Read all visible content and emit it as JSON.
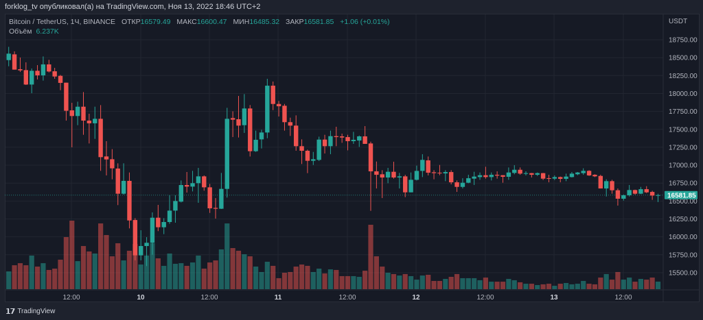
{
  "header": {
    "publisher_line": "forklog_tv опубликовал(а) на TradingView.com, Ноя 13, 2022 18:46 UTC+2"
  },
  "legend": {
    "symbol": "Bitcoin / TetherUS, 1Ч, BINANCE",
    "open_label": "ОТКР",
    "open": "16579.49",
    "high_label": "МАКС",
    "high": "16600.47",
    "low_label": "МИН",
    "low": "16485.32",
    "close_label": "ЗАКР",
    "close": "16581.85",
    "change": "+1.06 (+0.01%)",
    "volume_label": "Объём",
    "volume": "6.237K"
  },
  "price_axis": {
    "currency": "USDT",
    "last_price": "16581.85"
  },
  "footer": {
    "logo_text": "TradingView"
  },
  "colors": {
    "up": "#26a69a",
    "down": "#ef5350",
    "background": "#161a25",
    "grid": "#222631"
  },
  "chart_data": {
    "type": "candlestick",
    "interval": "1h",
    "ylim": [
      15350,
      18850
    ],
    "y_ticks": [
      "18750.00",
      "18500.00",
      "18250.00",
      "18000.00",
      "17750.00",
      "17500.00",
      "17250.00",
      "17000.00",
      "16750.00",
      "16500.00",
      "16250.00",
      "16000.00",
      "15750.00",
      "15500.00"
    ],
    "x_ticks": [
      "12:00",
      "10",
      "12:00",
      "11",
      "12:00",
      "12",
      "12:00",
      "13",
      "12:00"
    ],
    "ohlc": [
      [
        18466,
        18651,
        18380,
        18556
      ],
      [
        18546,
        18588,
        18333,
        18333
      ],
      [
        18339,
        18502,
        18301,
        18323
      ],
      [
        18326,
        18435,
        18119,
        18125
      ],
      [
        18125,
        18349,
        18004,
        18317
      ],
      [
        18317,
        18396,
        18196,
        18253
      ],
      [
        18253,
        18517,
        18180,
        18406
      ],
      [
        18406,
        18470,
        18294,
        18307
      ],
      [
        18310,
        18358,
        18205,
        18237
      ],
      [
        18246,
        18259,
        18046,
        18148
      ],
      [
        18151,
        18151,
        17622,
        17759
      ],
      [
        17765,
        17870,
        17249,
        17686
      ],
      [
        17686,
        17886,
        17558,
        17816
      ],
      [
        17816,
        18020,
        17424,
        17622
      ],
      [
        17622,
        17718,
        17303,
        17584
      ],
      [
        17584,
        17816,
        17367,
        17647
      ],
      [
        17647,
        17838,
        16921,
        17112
      ],
      [
        17122,
        17335,
        16857,
        17080
      ],
      [
        17083,
        17224,
        16803,
        16956
      ],
      [
        16953,
        17026,
        16443,
        16602
      ],
      [
        16602,
        17026,
        16589,
        16781
      ],
      [
        16781,
        16898,
        16118,
        16229
      ],
      [
        16235,
        16261,
        15672,
        15742
      ],
      [
        15742,
        16092,
        15672,
        15872
      ],
      [
        15872,
        15996,
        15592,
        15917
      ],
      [
        15917,
        16341,
        15751,
        16267
      ],
      [
        16267,
        16446,
        16080,
        16134
      ],
      [
        16134,
        16261,
        16038,
        16207
      ],
      [
        16207,
        16580,
        16182,
        16366
      ],
      [
        16366,
        16580,
        16197,
        16500
      ],
      [
        16491,
        16787,
        16480,
        16723
      ],
      [
        16723,
        16905,
        16618,
        16701
      ],
      [
        16701,
        16921,
        16634,
        16749
      ],
      [
        16749,
        16962,
        16475,
        16844
      ],
      [
        16844,
        16857,
        16644,
        16691
      ],
      [
        16691,
        16739,
        16334,
        16398
      ],
      [
        16404,
        16541,
        16255,
        16392
      ],
      [
        16392,
        16892,
        16389,
        16669
      ],
      [
        16669,
        17800,
        16548,
        17647
      ],
      [
        17657,
        17752,
        17392,
        17635
      ],
      [
        17641,
        17966,
        17386,
        17552
      ],
      [
        17558,
        17992,
        17450,
        17791
      ],
      [
        17791,
        17839,
        17121,
        17195
      ],
      [
        17195,
        17482,
        17185,
        17354
      ],
      [
        17360,
        17494,
        17233,
        17456
      ],
      [
        17456,
        18205,
        17376,
        18109
      ],
      [
        18109,
        18167,
        17768,
        17854
      ],
      [
        17854,
        17896,
        17679,
        17822
      ],
      [
        17829,
        17854,
        17482,
        17600
      ],
      [
        17600,
        17663,
        17408,
        17552
      ],
      [
        17552,
        17695,
        17201,
        17265
      ],
      [
        17265,
        17360,
        17016,
        17201
      ],
      [
        17201,
        17217,
        16889,
        17061
      ],
      [
        17061,
        17185,
        17003,
        17083
      ],
      [
        17074,
        17398,
        17058,
        17357
      ],
      [
        17357,
        17424,
        17163,
        17265
      ],
      [
        17265,
        17482,
        17153,
        17405
      ],
      [
        17405,
        17536,
        17265,
        17392
      ],
      [
        17402,
        17440,
        17312,
        17386
      ],
      [
        17392,
        17424,
        17207,
        17335
      ],
      [
        17335,
        17465,
        17297,
        17354
      ],
      [
        17344,
        17414,
        17255,
        17402
      ],
      [
        17402,
        17545,
        17297,
        17297
      ],
      [
        17303,
        17328,
        16363,
        16914
      ],
      [
        16914,
        17051,
        16675,
        16866
      ],
      [
        16873,
        16930,
        16541,
        16828
      ],
      [
        16828,
        16962,
        16748,
        16908
      ],
      [
        16908,
        17048,
        16812,
        16828
      ],
      [
        16828,
        16892,
        16675,
        16844
      ],
      [
        16844,
        16866,
        16554,
        16621
      ],
      [
        16621,
        16898,
        16621,
        16796
      ],
      [
        16796,
        16994,
        16787,
        16920
      ],
      [
        16920,
        17153,
        16834,
        17074
      ],
      [
        17067,
        17121,
        16857,
        16895
      ],
      [
        16901,
        16930,
        16803,
        16889
      ],
      [
        16895,
        17003,
        16860,
        16885
      ],
      [
        16885,
        16930,
        16777,
        16904
      ],
      [
        16904,
        16930,
        16732,
        16761
      ],
      [
        16761,
        16787,
        16627,
        16697
      ],
      [
        16697,
        16818,
        16675,
        16755
      ],
      [
        16755,
        16866,
        16748,
        16818
      ],
      [
        16812,
        16908,
        16723,
        16841
      ],
      [
        16834,
        16898,
        16796,
        16860
      ],
      [
        16860,
        16978,
        16812,
        16834
      ],
      [
        16834,
        16898,
        16787,
        16866
      ],
      [
        16866,
        16914,
        16812,
        16854
      ],
      [
        16860,
        16860,
        16755,
        16838
      ],
      [
        16838,
        16968,
        16796,
        16898
      ],
      [
        16892,
        17000,
        16873,
        16936
      ],
      [
        16936,
        16968,
        16866,
        16882
      ],
      [
        16879,
        16914,
        16857,
        16889
      ],
      [
        16889,
        16892,
        16828,
        16866
      ],
      [
        16866,
        16898,
        16850,
        16889
      ],
      [
        16889,
        16892,
        16793,
        16812
      ],
      [
        16819,
        16866,
        16761,
        16809
      ],
      [
        16812,
        16857,
        16793,
        16834
      ],
      [
        16834,
        16841,
        16761,
        16809
      ],
      [
        16809,
        16882,
        16777,
        16841
      ],
      [
        16834,
        16905,
        16828,
        16882
      ],
      [
        16873,
        16905,
        16860,
        16898
      ],
      [
        16889,
        16956,
        16866,
        16921
      ],
      [
        16921,
        16930,
        16850,
        16857
      ],
      [
        16866,
        16873,
        16834,
        16844
      ],
      [
        16850,
        16866,
        16675,
        16675
      ],
      [
        16675,
        16803,
        16563,
        16777
      ],
      [
        16777,
        16796,
        16602,
        16650
      ],
      [
        16650,
        16675,
        16436,
        16532
      ],
      [
        16532,
        16589,
        16506,
        16580
      ],
      [
        16580,
        16723,
        16563,
        16653
      ],
      [
        16653,
        16659,
        16589,
        16602
      ],
      [
        16602,
        16697,
        16596,
        16665
      ],
      [
        16665,
        16707,
        16611,
        16621
      ],
      [
        16627,
        16643,
        16516,
        16576
      ],
      [
        16579.49,
        16600.47,
        16485.32,
        16581.85
      ]
    ],
    "volume_k": [
      14.7,
      19.8,
      21.5,
      19.8,
      27.8,
      18.7,
      21.5,
      15.9,
      17.0,
      24.4,
      43.1,
      56.7,
      23.2,
      35.7,
      31.2,
      29.5,
      54.4,
      44.8,
      27.2,
      38.0,
      23.8,
      31.8,
      37.4,
      20.4,
      27.8,
      38.0,
      25.5,
      19.3,
      29.5,
      21.0,
      21.5,
      19.3,
      22.1,
      27.8,
      17.0,
      22.1,
      23.8,
      32.9,
      54.4,
      34.0,
      31.8,
      28.9,
      27.2,
      18.7,
      14.2,
      22.7,
      19.3,
      9.1,
      13.6,
      14.2,
      18.7,
      20.4,
      19.3,
      14.2,
      17.0,
      13.0,
      16.4,
      15.9,
      10.8,
      10.8,
      10.8,
      10.2,
      15.3,
      53.3,
      27.2,
      18.7,
      13.6,
      12.5,
      11.3,
      12.5,
      10.8,
      7.9,
      11.3,
      11.9,
      6.8,
      6.8,
      8.5,
      10.2,
      12.5,
      9.1,
      9.1,
      9.1,
      7.4,
      9.6,
      6.2,
      6.2,
      6.2,
      8.5,
      7.4,
      5.7,
      4.5,
      4.5,
      3.4,
      4.0,
      4.5,
      2.8,
      4.5,
      5.1,
      4.0,
      4.5,
      6.8,
      4.5,
      4.0,
      9.6,
      12.5,
      7.9,
      14.2,
      7.9,
      9.6,
      6.2,
      8.5,
      7.9,
      9.6,
      6.237
    ]
  }
}
